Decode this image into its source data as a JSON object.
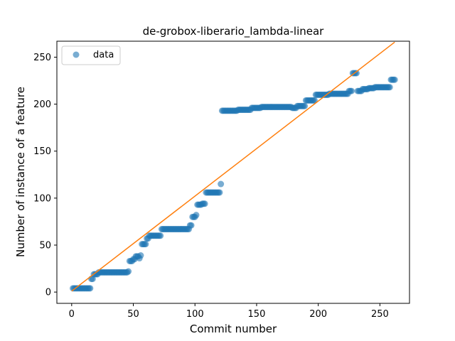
{
  "chart_data": {
    "type": "scatter",
    "title": "de-grobox-liberario_lambda-linear",
    "xlabel": "Commit number",
    "ylabel": "Number of instance of a feature",
    "xlim": [
      -12,
      274
    ],
    "ylim": [
      -12,
      267
    ],
    "xticks": [
      0,
      50,
      100,
      150,
      200,
      250
    ],
    "yticks": [
      0,
      50,
      100,
      150,
      200,
      250
    ],
    "grid": false,
    "legend": {
      "placement": "upper-left",
      "entries": [
        "data"
      ]
    },
    "colors": {
      "points": "#1f77b4",
      "fit_line": "#ff7f0e"
    },
    "series": [
      {
        "name": "data",
        "kind": "points",
        "segments": [
          {
            "x_start": 1,
            "x_end": 15,
            "y": 4
          },
          {
            "x_start": 16,
            "x_end": 17,
            "y": 14
          },
          {
            "x_start": 18,
            "x_end": 21,
            "y": 19
          },
          {
            "x_start": 22,
            "x_end": 45,
            "y": 21
          },
          {
            "x_start": 46,
            "x_end": 46,
            "y": 22
          },
          {
            "x_start": 47,
            "x_end": 49,
            "y": 33
          },
          {
            "x_start": 50,
            "x_end": 51,
            "y": 35
          },
          {
            "x_start": 52,
            "x_end": 54,
            "y": 38
          },
          {
            "x_start": 55,
            "x_end": 55,
            "y": 36
          },
          {
            "x_start": 56,
            "x_end": 56,
            "y": 39
          },
          {
            "x_start": 57,
            "x_end": 60,
            "y": 51
          },
          {
            "x_start": 61,
            "x_end": 62,
            "y": 57
          },
          {
            "x_start": 63,
            "x_end": 72,
            "y": 60
          },
          {
            "x_start": 73,
            "x_end": 95,
            "y": 67
          },
          {
            "x_start": 96,
            "x_end": 97,
            "y": 71
          },
          {
            "x_start": 98,
            "x_end": 100,
            "y": 80
          },
          {
            "x_start": 101,
            "x_end": 101,
            "y": 82
          },
          {
            "x_start": 102,
            "x_end": 105,
            "y": 93
          },
          {
            "x_start": 106,
            "x_end": 108,
            "y": 94
          },
          {
            "x_start": 109,
            "x_end": 120,
            "y": 106
          },
          {
            "x_start": 121,
            "x_end": 121,
            "y": 115
          },
          {
            "x_start": 122,
            "x_end": 134,
            "y": 193
          },
          {
            "x_start": 135,
            "x_end": 145,
            "y": 194
          },
          {
            "x_start": 146,
            "x_end": 153,
            "y": 196
          },
          {
            "x_start": 154,
            "x_end": 178,
            "y": 197
          },
          {
            "x_start": 179,
            "x_end": 182,
            "y": 196
          },
          {
            "x_start": 183,
            "x_end": 189,
            "y": 198
          },
          {
            "x_start": 190,
            "x_end": 197,
            "y": 204
          },
          {
            "x_start": 198,
            "x_end": 208,
            "y": 210
          },
          {
            "x_start": 209,
            "x_end": 224,
            "y": 211
          },
          {
            "x_start": 225,
            "x_end": 227,
            "y": 214
          },
          {
            "x_start": 228,
            "x_end": 231,
            "y": 233
          },
          {
            "x_start": 232,
            "x_end": 235,
            "y": 214
          },
          {
            "x_start": 236,
            "x_end": 240,
            "y": 216
          },
          {
            "x_start": 241,
            "x_end": 245,
            "y": 217
          },
          {
            "x_start": 246,
            "x_end": 258,
            "y": 218
          },
          {
            "x_start": 259,
            "x_end": 262,
            "y": 226
          }
        ]
      },
      {
        "kind": "line",
        "x": [
          0,
          262
        ],
        "y": [
          1,
          266
        ]
      }
    ]
  }
}
